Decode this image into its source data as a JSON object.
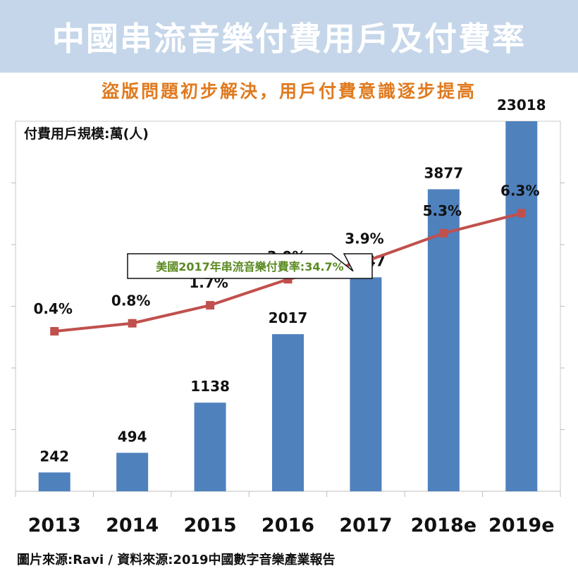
{
  "header": {
    "title": "中國串流音樂付費用戶及付費率",
    "subtitle": "盜版問題初步解決，用戶付費意識逐步提高"
  },
  "chart_data": {
    "type": "bar",
    "ylabel": "付費用戶規模:萬(人)",
    "categories": [
      "2013",
      "2014",
      "2015",
      "2016",
      "2017",
      "2018e",
      "2019e"
    ],
    "series": [
      {
        "type": "bar",
        "values": [
          242,
          494,
          1138,
          2017,
          2747,
          3877,
          23018
        ],
        "color": "#4f81bd"
      },
      {
        "type": "line",
        "values": [
          0.4,
          0.8,
          1.7,
          3.0,
          3.9,
          5.3,
          6.3
        ],
        "labels": [
          "0.4%",
          "0.8%",
          "1.7%",
          "3.0%",
          "3.9%",
          "5.3%",
          "6.3%"
        ],
        "color": "#c0504d"
      }
    ],
    "bar_ylim": [
      0,
      4750
    ],
    "rate_ylim": [
      -7.6,
      10.9
    ],
    "grid": false,
    "annotation": {
      "text": "美國2017年串流音樂付費率:34.7%",
      "color": "#5a8a22",
      "points_to": "2017"
    }
  },
  "footer": {
    "source": "圖片來源:Ravi  /  資料來源:2019中國數字音樂產業報告"
  }
}
